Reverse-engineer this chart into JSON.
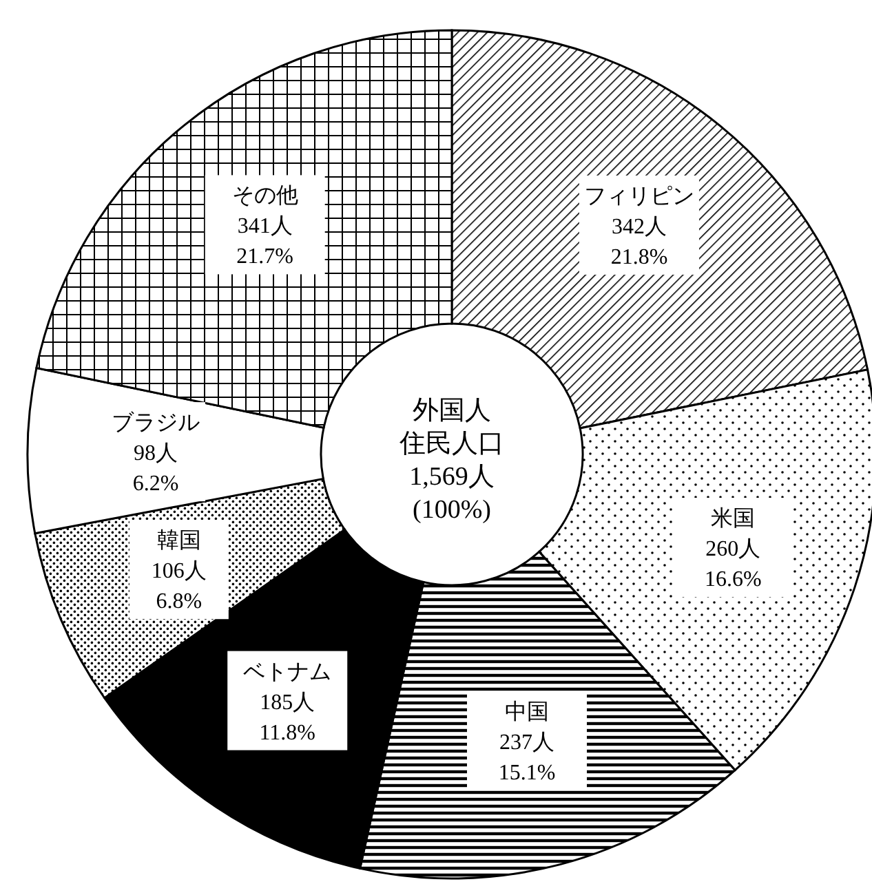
{
  "chart_data": {
    "type": "donut",
    "title": "外国人住民人口",
    "subtitle": "1,569人\n(100%)",
    "categories": [
      "フィリピン",
      "米国",
      "中国",
      "ベトナム",
      "韓国",
      "ブラジル",
      "その他"
    ],
    "values": [
      342,
      260,
      237,
      185,
      106,
      98,
      341
    ],
    "value_labels": [
      "342人\n21.8%",
      "260人\n16.6%",
      "237人\n15.1%",
      "185人\n11.8%",
      "106人\n6.8%",
      "98人\n6.2%",
      "341人\n21.7%"
    ],
    "colors": [
      "#000000",
      "#000000",
      "#000000",
      "#000000",
      "#000000",
      "#ffffff",
      "#000000"
    ]
  }
}
